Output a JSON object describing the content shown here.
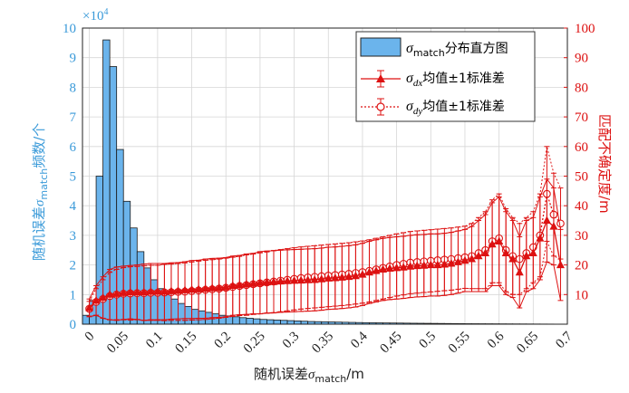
{
  "chart_data": {
    "type": "bar+line",
    "x_axis": {
      "label_prefix": "随机误差",
      "symbol": "σ",
      "symbol_sub": "match",
      "label_suffix": "/m",
      "ticks": [
        "0",
        "0.05",
        "0.1",
        "0.15",
        "0.2",
        "0.25",
        "0.3",
        "0.35",
        "0.4",
        "0.45",
        "0.5",
        "0.55",
        "0.6",
        "0.65",
        "0.7"
      ],
      "range": [
        -0.01,
        0.7
      ]
    },
    "y_left": {
      "label_prefix": "随机误差",
      "symbol": "σ",
      "symbol_sub": "match",
      "label_suffix": "频数/个",
      "ticks": [
        "0",
        "1",
        "2",
        "3",
        "4",
        "5",
        "6",
        "7",
        "8",
        "9",
        "10"
      ],
      "range": [
        0,
        10
      ],
      "exponent_label": "×10",
      "exponent_power": "4",
      "color": "#3a9ad9"
    },
    "y_right": {
      "label": "匹配不确定度/m",
      "ticks": [
        "10",
        "20",
        "30",
        "40",
        "50",
        "60",
        "70",
        "80",
        "90",
        "100"
      ],
      "range": [
        0,
        100
      ],
      "color": "#dd1111"
    },
    "legend": {
      "position": "top-right",
      "items": [
        {
          "symbol": "σ",
          "sub": "match",
          "text": "分布直方图",
          "marker": "bar"
        },
        {
          "symbol": "σ",
          "sub": "dx",
          "text": "均值±1标准差",
          "marker": "triangle"
        },
        {
          "symbol": "σ",
          "sub": "dy",
          "text": "均值±1标准差",
          "marker": "circle"
        }
      ]
    },
    "histogram": {
      "bin_width": 0.01,
      "bin_starts": [
        -0.01,
        0.0,
        0.01,
        0.02,
        0.03,
        0.04,
        0.05,
        0.06,
        0.07,
        0.08,
        0.09,
        0.1,
        0.11,
        0.12,
        0.13,
        0.14,
        0.15,
        0.16,
        0.17,
        0.18,
        0.19,
        0.2,
        0.21,
        0.22,
        0.23,
        0.24,
        0.25,
        0.26,
        0.27,
        0.28,
        0.29,
        0.3,
        0.31,
        0.32,
        0.33,
        0.34,
        0.35,
        0.36,
        0.37,
        0.38,
        0.39,
        0.4,
        0.41,
        0.42,
        0.43,
        0.44,
        0.45,
        0.46,
        0.47,
        0.48,
        0.49,
        0.5,
        0.51,
        0.52,
        0.53,
        0.54,
        0.55,
        0.56,
        0.57,
        0.58,
        0.59,
        0.6,
        0.61,
        0.62,
        0.63,
        0.64,
        0.65,
        0.66,
        0.67,
        0.68,
        0.69
      ],
      "counts": [
        0.3,
        0.8,
        5.0,
        9.6,
        8.7,
        5.9,
        4.15,
        3.25,
        2.45,
        1.9,
        1.5,
        1.2,
        1.0,
        0.85,
        0.7,
        0.6,
        0.5,
        0.45,
        0.4,
        0.35,
        0.3,
        0.28,
        0.25,
        0.22,
        0.2,
        0.18,
        0.16,
        0.15,
        0.14,
        0.13,
        0.12,
        0.11,
        0.1,
        0.09,
        0.085,
        0.08,
        0.075,
        0.07,
        0.065,
        0.06,
        0.055,
        0.05,
        0.048,
        0.045,
        0.042,
        0.04,
        0.038,
        0.035,
        0.032,
        0.03,
        0.028,
        0.026,
        0.024,
        0.022,
        0.02,
        0.018,
        0.016,
        0.015,
        0.014,
        0.013,
        0.012,
        0.011,
        0.01,
        0.009,
        0.008,
        0.007,
        0.006,
        0.005,
        0.004,
        0.003,
        0.002
      ]
    },
    "series_dx": {
      "name": "σdx 均值±1标准差",
      "x": [
        0.0,
        0.01,
        0.02,
        0.03,
        0.04,
        0.05,
        0.06,
        0.07,
        0.08,
        0.09,
        0.1,
        0.11,
        0.12,
        0.13,
        0.14,
        0.15,
        0.16,
        0.17,
        0.18,
        0.19,
        0.2,
        0.21,
        0.22,
        0.23,
        0.24,
        0.25,
        0.26,
        0.27,
        0.28,
        0.29,
        0.3,
        0.31,
        0.32,
        0.33,
        0.34,
        0.35,
        0.36,
        0.37,
        0.38,
        0.39,
        0.4,
        0.41,
        0.42,
        0.43,
        0.44,
        0.45,
        0.46,
        0.47,
        0.48,
        0.49,
        0.5,
        0.51,
        0.52,
        0.53,
        0.54,
        0.55,
        0.56,
        0.57,
        0.58,
        0.59,
        0.6,
        0.61,
        0.62,
        0.63,
        0.64,
        0.65,
        0.66,
        0.67,
        0.68,
        0.69
      ],
      "mean": [
        5.5,
        8,
        9,
        10,
        10.3,
        10.6,
        10.8,
        10.8,
        10.8,
        11,
        11,
        11,
        11.2,
        11.3,
        11.5,
        11.7,
        11.8,
        12,
        12.2,
        12.3,
        12.5,
        13,
        13.2,
        13.5,
        13.7,
        14,
        14.2,
        14.3,
        14.5,
        14.6,
        14.7,
        14.8,
        14.9,
        15,
        15.2,
        15.5,
        15.6,
        15.8,
        16,
        16.3,
        16.8,
        17.5,
        18,
        18.5,
        18.8,
        19,
        19.2,
        19.5,
        19.7,
        19.8,
        20,
        20,
        20.2,
        20.5,
        21,
        21.5,
        22,
        23,
        24,
        27,
        28,
        24,
        22,
        17.5,
        23,
        24,
        29,
        35,
        33,
        20
      ],
      "err": [
        3,
        5,
        7,
        8.5,
        9,
        9,
        9,
        9.2,
        9.5,
        9.5,
        9.5,
        9.5,
        9.5,
        9.5,
        9.6,
        9.8,
        9.8,
        10,
        10,
        10,
        10,
        10,
        10,
        10.2,
        10.2,
        10.5,
        10.5,
        10.5,
        10.5,
        10.5,
        10.5,
        10.5,
        10.5,
        10.5,
        10.5,
        10.5,
        10.5,
        10.5,
        10.5,
        10.5,
        10.5,
        10.5,
        10.5,
        10.5,
        10.5,
        10.5,
        10.5,
        10.5,
        10.5,
        10.5,
        10.5,
        10.5,
        10.5,
        10.5,
        10.5,
        10.5,
        11,
        12,
        13,
        14,
        15,
        14,
        13,
        12,
        12,
        12,
        14,
        14,
        13,
        12
      ]
    },
    "series_dy": {
      "name": "σdy 均值±1标准差",
      "x": [
        0.0,
        0.01,
        0.02,
        0.03,
        0.04,
        0.05,
        0.06,
        0.07,
        0.08,
        0.09,
        0.1,
        0.11,
        0.12,
        0.13,
        0.14,
        0.15,
        0.16,
        0.17,
        0.18,
        0.19,
        0.2,
        0.21,
        0.22,
        0.23,
        0.24,
        0.25,
        0.26,
        0.27,
        0.28,
        0.29,
        0.3,
        0.31,
        0.32,
        0.33,
        0.34,
        0.35,
        0.36,
        0.37,
        0.38,
        0.39,
        0.4,
        0.41,
        0.42,
        0.43,
        0.44,
        0.45,
        0.46,
        0.47,
        0.48,
        0.49,
        0.5,
        0.51,
        0.52,
        0.53,
        0.54,
        0.55,
        0.56,
        0.57,
        0.58,
        0.59,
        0.6,
        0.61,
        0.62,
        0.63,
        0.64,
        0.65,
        0.66,
        0.67,
        0.68,
        0.69
      ],
      "mean": [
        5.2,
        7.5,
        8.5,
        9.5,
        10,
        10.3,
        10.4,
        10.5,
        10.5,
        10.6,
        10.6,
        10.7,
        10.8,
        10.9,
        11,
        11.2,
        11.4,
        11.6,
        11.8,
        12,
        12.3,
        12.6,
        12.9,
        13.2,
        13.5,
        13.8,
        14.1,
        14.4,
        14.7,
        15,
        15.3,
        15.6,
        15.8,
        16,
        16.2,
        16.4,
        16.6,
        16.8,
        17,
        17.3,
        17.6,
        18,
        18.5,
        19,
        19.5,
        20,
        20.4,
        20.8,
        21,
        21.2,
        21.4,
        21.6,
        21.8,
        22,
        22.3,
        22.6,
        23,
        24,
        25,
        28,
        29,
        25,
        23,
        22,
        24,
        26,
        30,
        44,
        37,
        34
      ],
      "err": [
        2.5,
        4.5,
        6.5,
        8,
        8.5,
        8.8,
        9,
        9,
        9.2,
        9.3,
        9.3,
        9.5,
        9.5,
        9.6,
        9.7,
        9.8,
        9.9,
        10,
        10,
        10,
        10,
        10,
        10,
        10.2,
        10.2,
        10.3,
        10.3,
        10.5,
        10.5,
        10.5,
        10.5,
        10.5,
        10.5,
        10.5,
        10.5,
        10.5,
        10.5,
        10.5,
        10.5,
        10.5,
        10.5,
        10.5,
        10.5,
        10.5,
        10.5,
        10.5,
        10.5,
        10.5,
        10.5,
        10.5,
        10.5,
        10.5,
        10.5,
        10.5,
        10.5,
        10.5,
        11,
        12,
        13,
        14,
        15,
        14,
        13,
        12,
        12,
        12,
        14,
        16,
        14,
        12
      ]
    }
  }
}
